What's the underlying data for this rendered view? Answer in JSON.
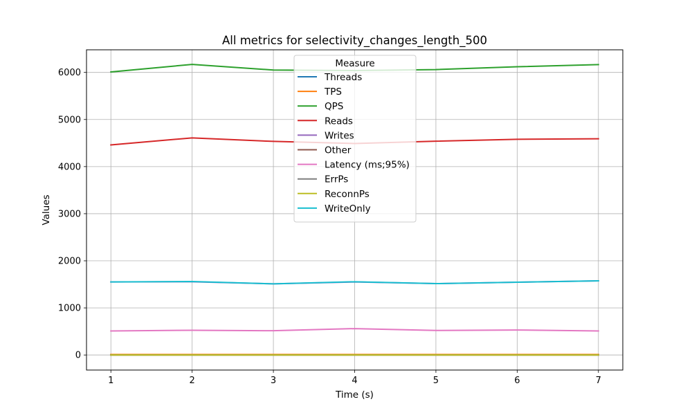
{
  "chart_data": {
    "type": "line",
    "title": "All metrics for selectivity_changes_length_500",
    "xlabel": "Time (s)",
    "ylabel": "Values",
    "x": [
      1,
      2,
      3,
      4,
      5,
      6,
      7
    ],
    "xlim": [
      0.7,
      7.3
    ],
    "ylim": [
      -320,
      6480
    ],
    "xticks": [
      1,
      2,
      3,
      4,
      5,
      6,
      7
    ],
    "yticks": [
      0,
      1000,
      2000,
      3000,
      4000,
      5000,
      6000
    ],
    "grid": true,
    "legend": {
      "title": "Measure",
      "placement": "top-center"
    },
    "series": [
      {
        "name": "Threads",
        "color": "#1f77b4",
        "values": [
          8,
          8,
          8,
          8,
          8,
          8,
          8
        ]
      },
      {
        "name": "TPS",
        "color": "#ff7f0e",
        "values": [
          10,
          10,
          10,
          10,
          10,
          10,
          10
        ]
      },
      {
        "name": "QPS",
        "color": "#2ca02c",
        "values": [
          6010,
          6170,
          6050,
          6040,
          6060,
          6120,
          6165
        ]
      },
      {
        "name": "Reads",
        "color": "#d62728",
        "values": [
          4460,
          4610,
          4535,
          4490,
          4540,
          4580,
          4590
        ]
      },
      {
        "name": "Writes",
        "color": "#9467bd",
        "values": [
          1550,
          1555,
          1510,
          1550,
          1515,
          1545,
          1575
        ]
      },
      {
        "name": "Other",
        "color": "#8c564b",
        "values": [
          0,
          0,
          0,
          0,
          0,
          0,
          0
        ]
      },
      {
        "name": "Latency (ms;95%)",
        "color": "#e377c2",
        "values": [
          510,
          525,
          515,
          560,
          520,
          530,
          510
        ]
      },
      {
        "name": "ErrPs",
        "color": "#7f7f7f",
        "values": [
          0,
          0,
          0,
          0,
          0,
          0,
          0
        ]
      },
      {
        "name": "ReconnPs",
        "color": "#bcbd22",
        "values": [
          0,
          0,
          0,
          0,
          0,
          0,
          0
        ]
      },
      {
        "name": "WriteOnly",
        "color": "#17becf",
        "values": [
          1550,
          1560,
          1510,
          1555,
          1515,
          1545,
          1575
        ]
      }
    ]
  }
}
